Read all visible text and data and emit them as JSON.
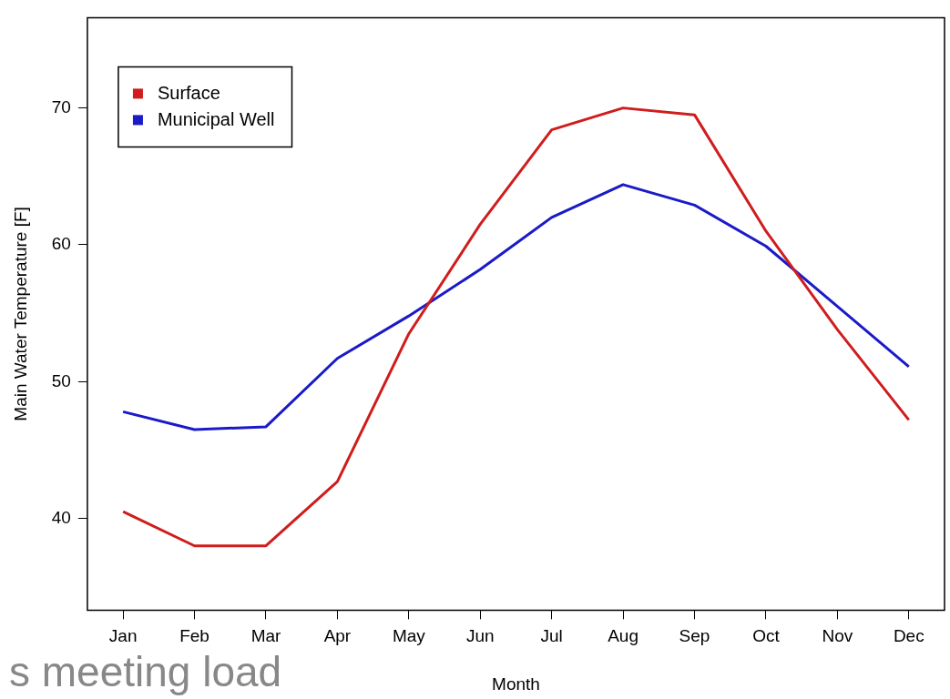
{
  "chart_data": {
    "type": "line",
    "xlabel": "Month",
    "ylabel": "Main Water Temperature [F]",
    "categories": [
      "Jan",
      "Feb",
      "Mar",
      "Apr",
      "May",
      "Jun",
      "Jul",
      "Aug",
      "Sep",
      "Oct",
      "Nov",
      "Dec"
    ],
    "series": [
      {
        "name": "Surface",
        "color": "#d01c1c",
        "values": [
          40.5,
          38,
          38,
          42.7,
          53.5,
          61.5,
          68.4,
          70,
          69.5,
          61,
          53.8,
          47.2
        ]
      },
      {
        "name": "Municipal Well",
        "color": "#1a1ac8",
        "values": [
          47.8,
          46.5,
          46.7,
          51.7,
          54.8,
          58.2,
          62,
          64.4,
          62.9,
          59.9,
          55.5,
          51.1
        ]
      }
    ],
    "ylim": [
      33.3,
      76.6
    ],
    "yticks": [
      40,
      50,
      60,
      70
    ],
    "grid": false,
    "legend": "top left",
    "marker": "none",
    "line_style": "solid",
    "annotations": [
      "s meeting load"
    ]
  }
}
